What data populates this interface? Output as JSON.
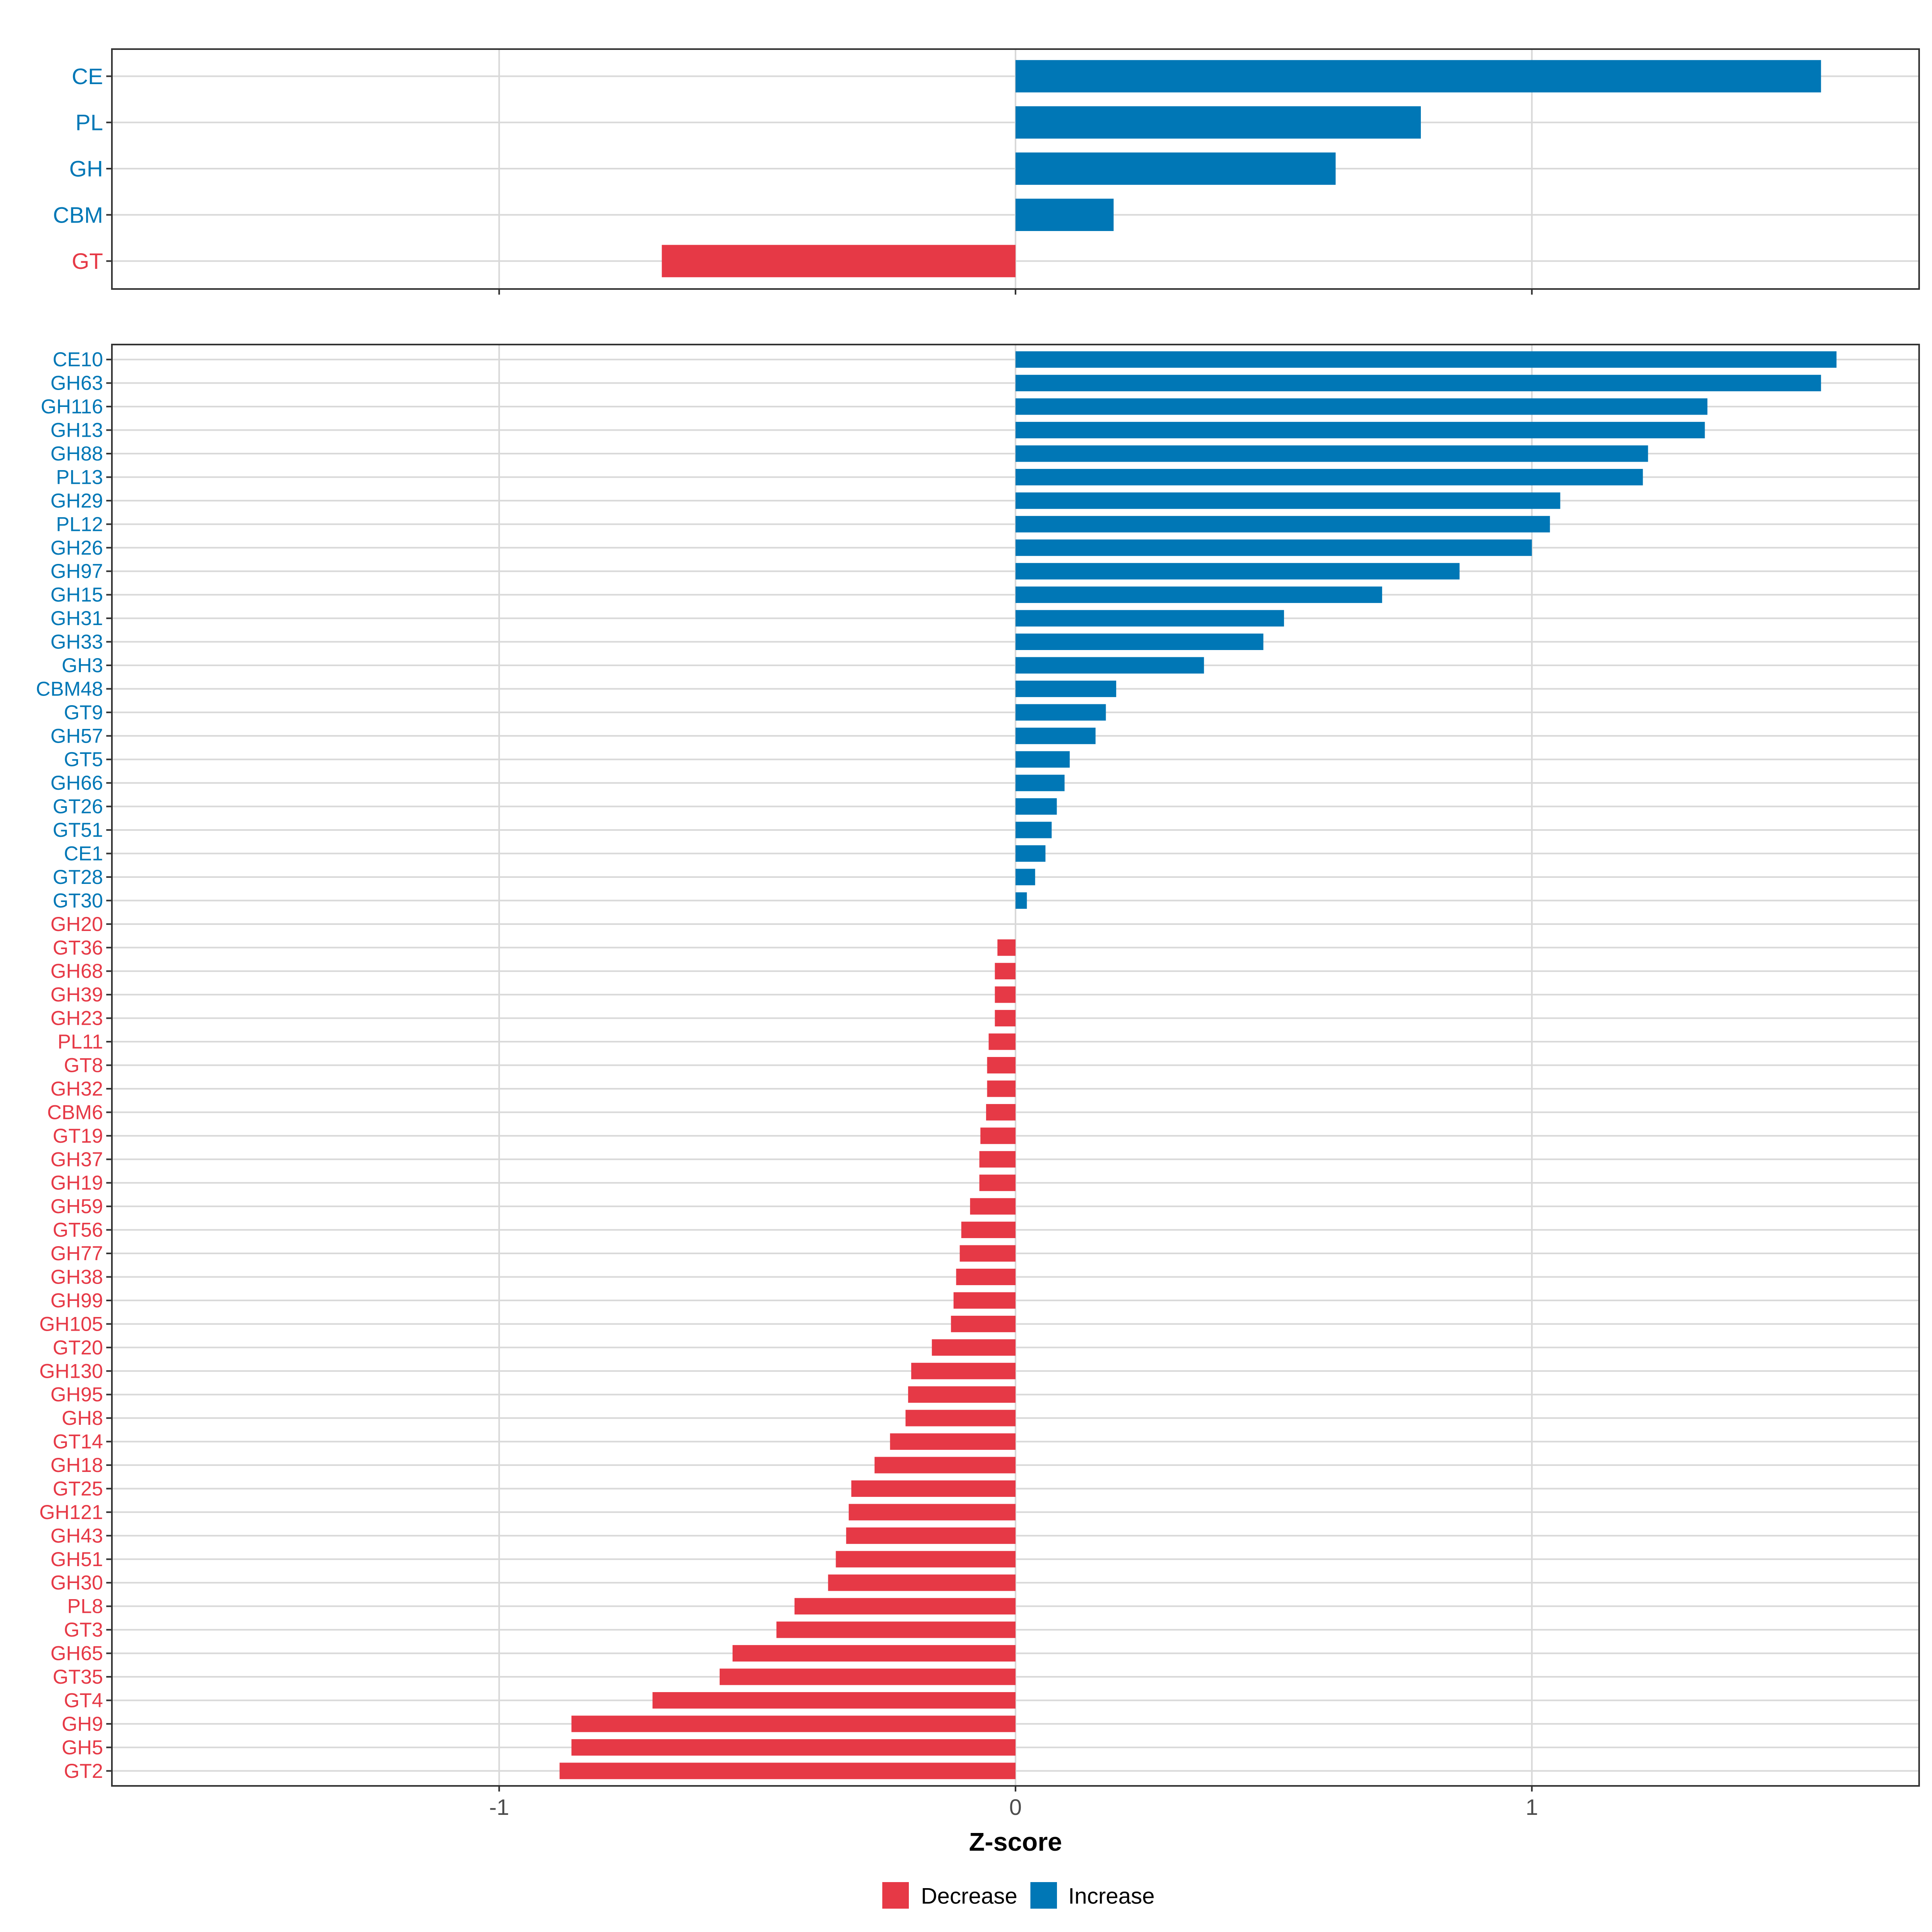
{
  "chart_data": [
    {
      "type": "bar",
      "orientation": "horizontal",
      "panel": "top",
      "categories": [
        "CE",
        "PL",
        "GH",
        "CBM",
        "GT"
      ],
      "values": [
        1.56,
        0.785,
        0.62,
        0.19,
        -0.685
      ],
      "direction": [
        "Increase",
        "Increase",
        "Increase",
        "Increase",
        "Decrease"
      ],
      "xlim": [
        -1.75,
        1.75
      ],
      "xticks": [
        -1,
        0,
        1
      ],
      "grid": true
    },
    {
      "type": "bar",
      "orientation": "horizontal",
      "panel": "bottom",
      "categories": [
        "CE10",
        "GH63",
        "GH116",
        "GH13",
        "GH88",
        "PL13",
        "GH29",
        "PL12",
        "GH26",
        "GH97",
        "GH15",
        "GH31",
        "GH33",
        "GH3",
        "CBM48",
        "GT9",
        "GH57",
        "GT5",
        "GH66",
        "GT26",
        "GT51",
        "CE1",
        "GT28",
        "GT30",
        "GH20",
        "GT36",
        "GH68",
        "GH39",
        "GH23",
        "PL11",
        "GT8",
        "GH32",
        "CBM6",
        "GT19",
        "GH37",
        "GH19",
        "GH59",
        "GT56",
        "GH77",
        "GH38",
        "GH99",
        "GH105",
        "GT20",
        "GH130",
        "GH95",
        "GH8",
        "GT14",
        "GH18",
        "GT25",
        "GH121",
        "GH43",
        "GH51",
        "GH30",
        "PL8",
        "GT3",
        "GH65",
        "GT35",
        "GT4",
        "GH9",
        "GH5",
        "GT2"
      ],
      "values": [
        1.59,
        1.56,
        1.34,
        1.335,
        1.225,
        1.215,
        1.055,
        1.035,
        1.0,
        0.86,
        0.71,
        0.52,
        0.48,
        0.365,
        0.195,
        0.175,
        0.155,
        0.105,
        0.095,
        0.08,
        0.07,
        0.058,
        0.038,
        0.022,
        0.0,
        -0.035,
        -0.04,
        -0.04,
        -0.04,
        -0.052,
        -0.055,
        -0.055,
        -0.057,
        -0.068,
        -0.07,
        -0.07,
        -0.088,
        -0.105,
        -0.108,
        -0.115,
        -0.12,
        -0.125,
        -0.162,
        -0.202,
        -0.208,
        -0.213,
        -0.243,
        -0.273,
        -0.318,
        -0.323,
        -0.328,
        -0.348,
        -0.363,
        -0.428,
        -0.463,
        -0.548,
        -0.573,
        -0.703,
        -0.86,
        -0.86,
        -0.883
      ],
      "direction": [
        "Increase",
        "Increase",
        "Increase",
        "Increase",
        "Increase",
        "Increase",
        "Increase",
        "Increase",
        "Increase",
        "Increase",
        "Increase",
        "Increase",
        "Increase",
        "Increase",
        "Increase",
        "Increase",
        "Increase",
        "Increase",
        "Increase",
        "Increase",
        "Increase",
        "Increase",
        "Increase",
        "Increase",
        "Decrease",
        "Decrease",
        "Decrease",
        "Decrease",
        "Decrease",
        "Decrease",
        "Decrease",
        "Decrease",
        "Decrease",
        "Decrease",
        "Decrease",
        "Decrease",
        "Decrease",
        "Decrease",
        "Decrease",
        "Decrease",
        "Decrease",
        "Decrease",
        "Decrease",
        "Decrease",
        "Decrease",
        "Decrease",
        "Decrease",
        "Decrease",
        "Decrease",
        "Decrease",
        "Decrease",
        "Decrease",
        "Decrease",
        "Decrease",
        "Decrease",
        "Decrease",
        "Decrease",
        "Decrease",
        "Decrease",
        "Decrease",
        "Decrease"
      ],
      "xlim": [
        -1.75,
        1.75
      ],
      "xticks": [
        -1,
        0,
        1
      ],
      "xtick_labels": [
        "-1",
        "0",
        "1"
      ],
      "xlabel": "Z-score",
      "grid": true
    }
  ],
  "legend": {
    "position": "bottom",
    "items": [
      {
        "key": "Decrease",
        "label": "Decrease",
        "color": "#E63946"
      },
      {
        "key": "Increase",
        "label": "Increase",
        "color": "#0077B6"
      }
    ]
  },
  "colors": {
    "Increase": "#0077B6",
    "Decrease": "#E63946",
    "grid": "#D9D9D9",
    "panel_border": "#333333"
  }
}
